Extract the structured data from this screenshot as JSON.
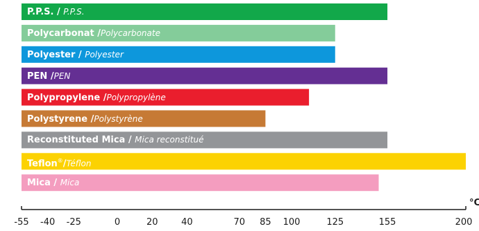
{
  "chart_data": {
    "type": "bar",
    "orientation": "horizontal",
    "xlim": [
      -55,
      200
    ],
    "x_unit": "°C",
    "ticks": [
      -55,
      -40,
      -25,
      0,
      20,
      40,
      70,
      85,
      100,
      125,
      155,
      200
    ],
    "categories": [
      {
        "name": "P.P.S.",
        "name_fr": "P.P.S.",
        "sep": " / ",
        "start": -55,
        "value": 155,
        "color": "#12a84a"
      },
      {
        "name": "Polycarbonat",
        "name_fr": "Polycarbonate",
        "sep": " /",
        "start": -55,
        "value": 125,
        "color": "#84cc9a"
      },
      {
        "name": "Polyester",
        "name_fr": "Polyester",
        "sep": " / ",
        "start": -55,
        "value": 125,
        "color": "#0d97dc"
      },
      {
        "name": "PEN",
        "name_fr": "PEN",
        "sep": " /",
        "start": -55,
        "value": 155,
        "color": "#642f93"
      },
      {
        "name": "Polypropylene",
        "name_fr": "Polypropylène",
        "sep": " /",
        "start": -55,
        "value": 110,
        "color": "#ea1e2d"
      },
      {
        "name": "Polystyrene",
        "name_fr": "Polystyrène",
        "sep": " /",
        "start": -55,
        "value": 85,
        "color": "#c67a35"
      },
      {
        "name": "Reconstituted Mica",
        "name_fr": "Mica reconstitué",
        "sep": " / ",
        "start": -55,
        "value": 155,
        "color": "#939598"
      },
      {
        "name": "Teflon",
        "name_sup": "®",
        "name_fr": "Téflon",
        "sep": "/",
        "start": -55,
        "value": 200,
        "color": "#fcd202"
      },
      {
        "name": "Mica",
        "name_fr": "Mica",
        "sep": " / ",
        "start": -55,
        "value": 150,
        "color": "#f49dbf"
      }
    ]
  }
}
